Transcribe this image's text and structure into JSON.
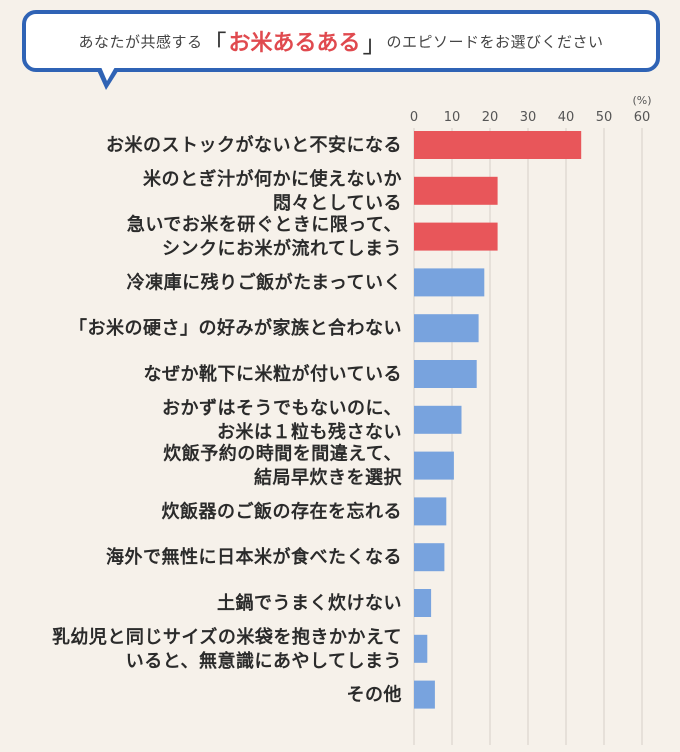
{
  "header": {
    "question_pre": "あなたが共感する",
    "bracket_open": "「",
    "highlight": "お米あるある",
    "bracket_close": "」",
    "question_post": "のエピソードをお選びください"
  },
  "chart_data": {
    "type": "bar",
    "orientation": "horizontal",
    "unit": "(%)",
    "xlim": [
      0,
      60
    ],
    "ticks": [
      0,
      10,
      20,
      30,
      40,
      50,
      60
    ],
    "grid": true,
    "colors": {
      "highlight": "#e8565a",
      "normal": "#78a3de",
      "grid": "#d6d0c8"
    },
    "categories": [
      {
        "lines": [
          "お米のストックがないと不安になる"
        ],
        "value": 44,
        "highlight": true
      },
      {
        "lines": [
          "米のとぎ汁が何かに使えないか",
          "悶々としている"
        ],
        "value": 22,
        "highlight": true
      },
      {
        "lines": [
          "急いでお米を研ぐときに限って、",
          "シンクにお米が流れてしまう"
        ],
        "value": 22,
        "highlight": true
      },
      {
        "lines": [
          "冷凍庫に残りご飯がたまっていく"
        ],
        "value": 18.5,
        "highlight": false
      },
      {
        "lines": [
          "「お米の硬さ」の好みが家族と合わない"
        ],
        "value": 17,
        "highlight": false
      },
      {
        "lines": [
          "なぜか靴下に米粒が付いている"
        ],
        "value": 16.5,
        "highlight": false
      },
      {
        "lines": [
          "おかずはそうでもないのに、",
          "お米は１粒も残さない"
        ],
        "value": 12.5,
        "highlight": false
      },
      {
        "lines": [
          "炊飯予約の時間を間違えて、",
          "結局早炊きを選択"
        ],
        "value": 10.5,
        "highlight": false
      },
      {
        "lines": [
          "炊飯器のご飯の存在を忘れる"
        ],
        "value": 8.5,
        "highlight": false
      },
      {
        "lines": [
          "海外で無性に日本米が食べたくなる"
        ],
        "value": 8,
        "highlight": false
      },
      {
        "lines": [
          "土鍋でうまく炊けない"
        ],
        "value": 4.5,
        "highlight": false
      },
      {
        "lines": [
          "乳幼児と同じサイズの米袋を抱きかかえて",
          "いると、無意識にあやしてしまう"
        ],
        "value": 3.5,
        "highlight": false
      },
      {
        "lines": [
          "その他"
        ],
        "value": 5.5,
        "highlight": false
      }
    ]
  }
}
